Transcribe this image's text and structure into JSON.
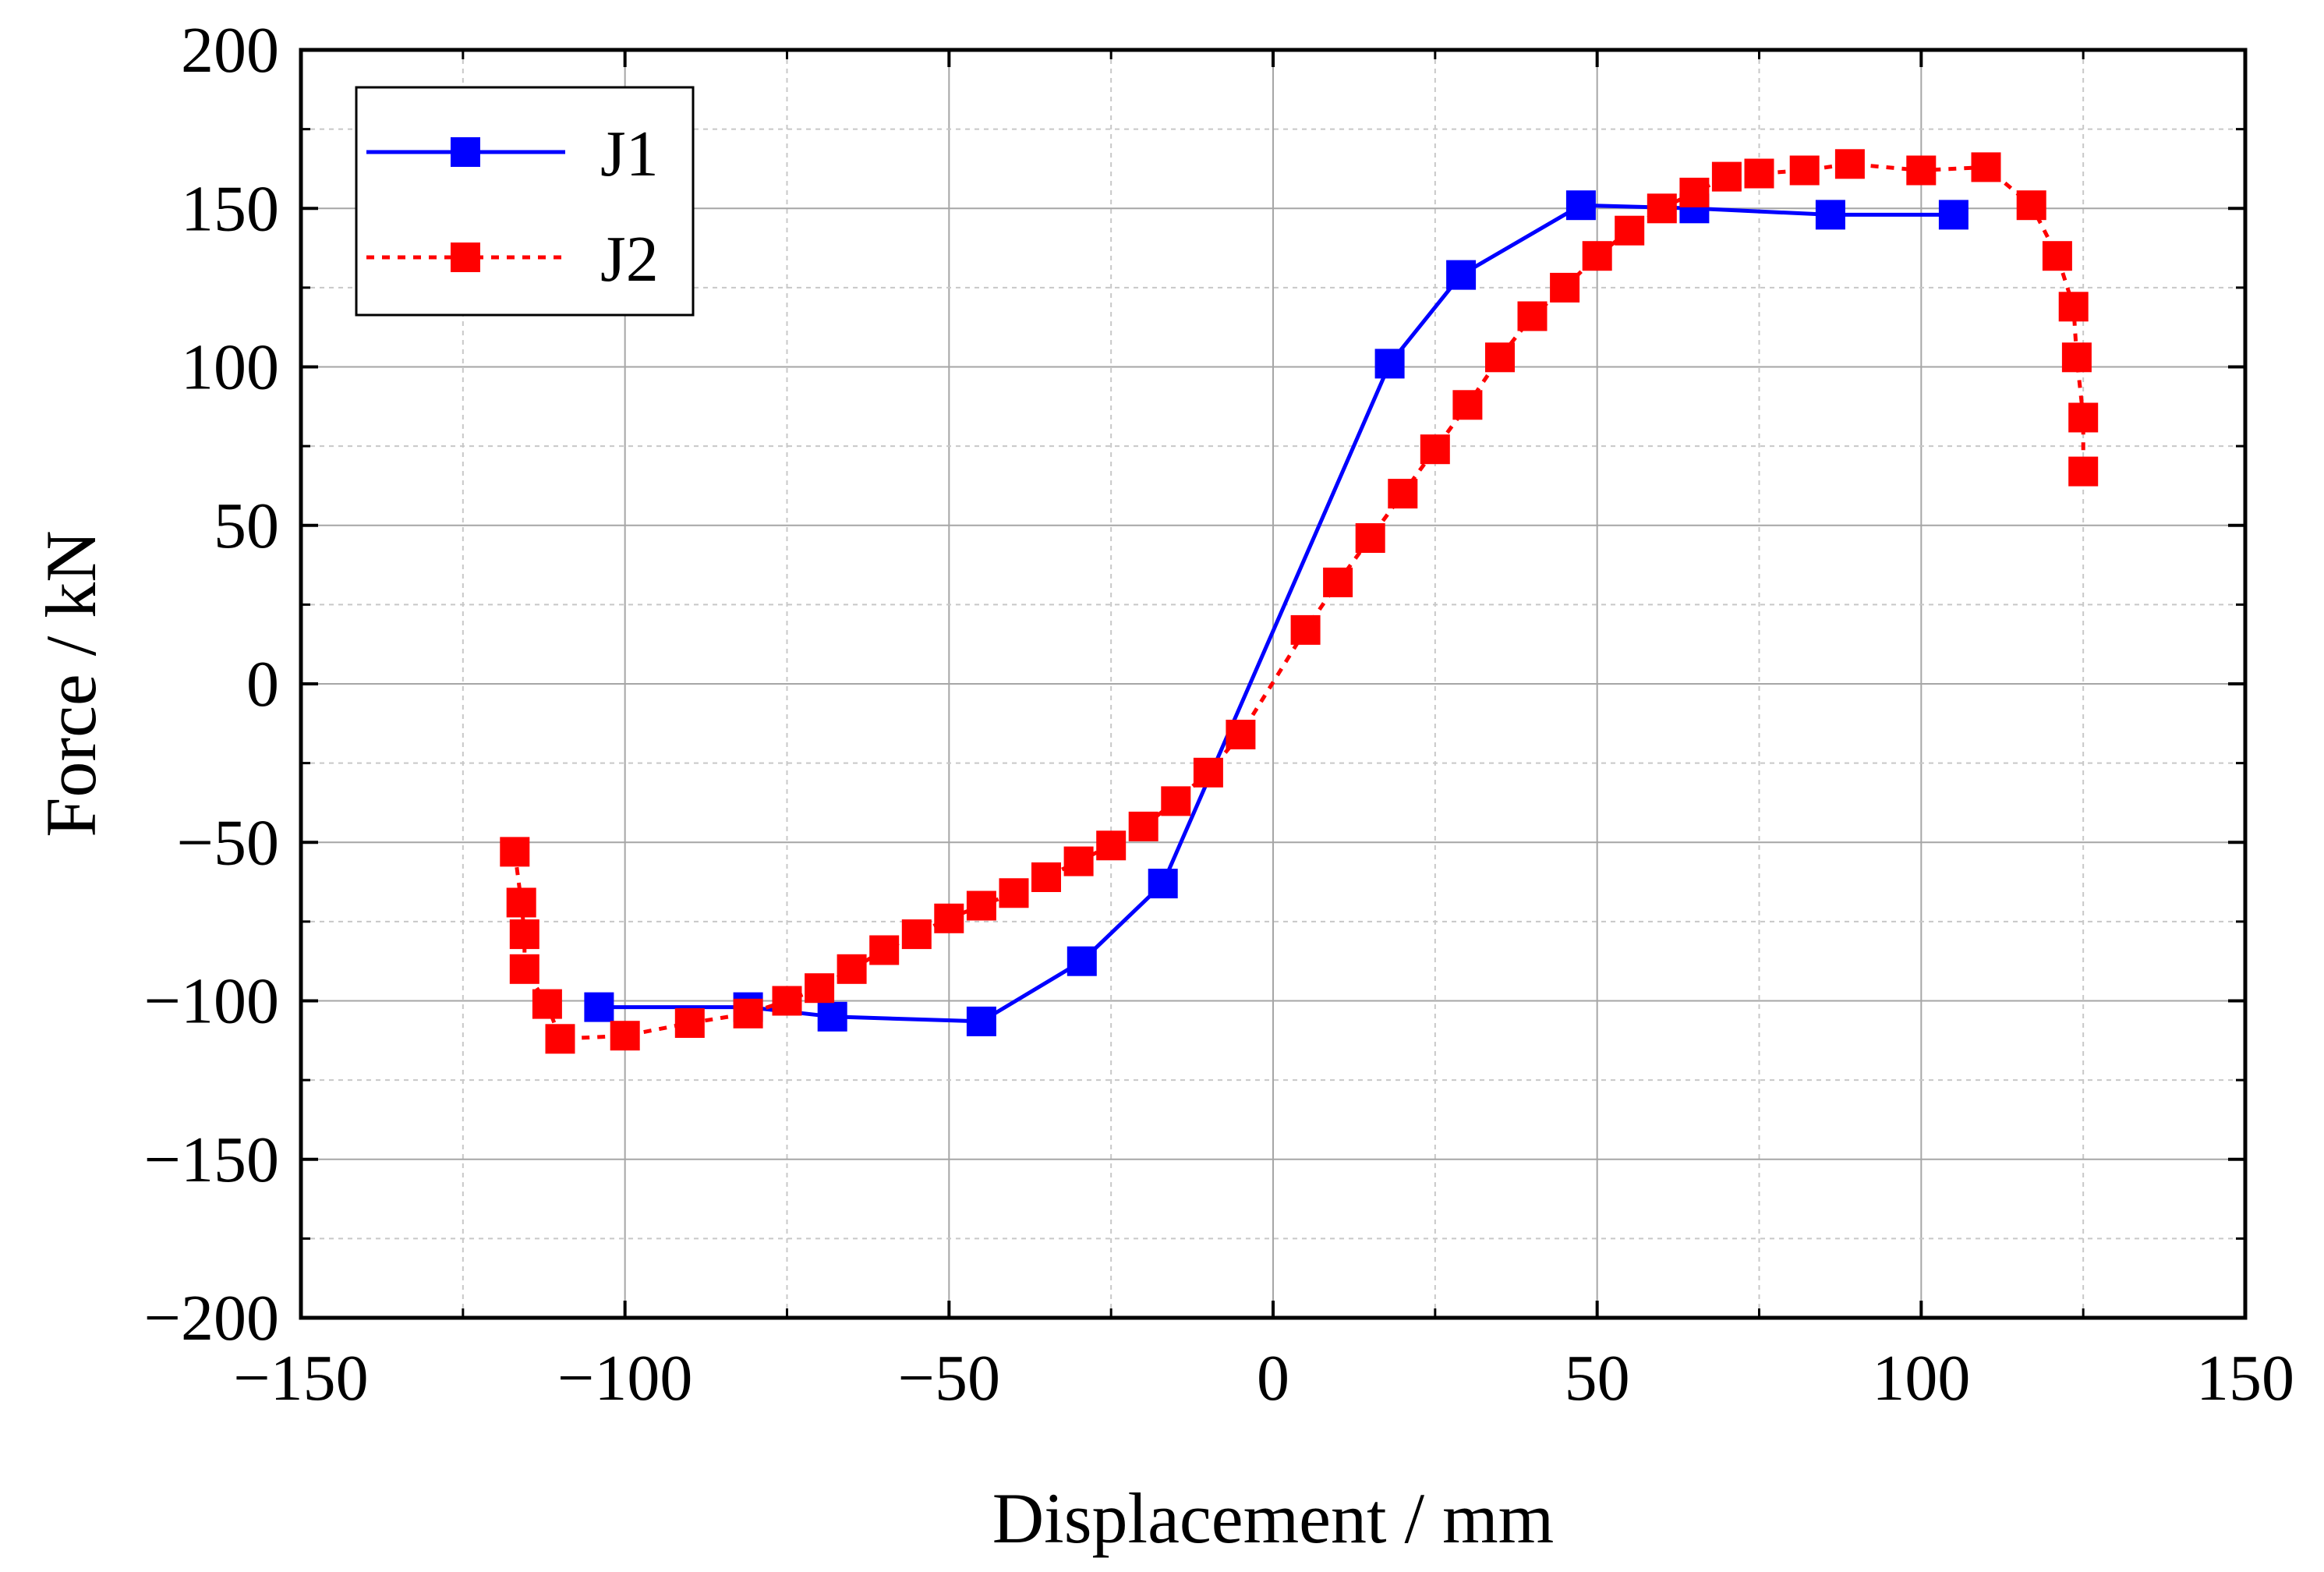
{
  "chart_data": {
    "type": "line",
    "title": "",
    "xlabel": "Displacement / mm",
    "ylabel": "Force / kN",
    "xlim": [
      -150,
      150
    ],
    "ylim": [
      -200,
      200
    ],
    "xticks": [
      -150,
      -100,
      -50,
      0,
      50,
      100,
      150
    ],
    "yticks": [
      -200,
      -150,
      -100,
      -50,
      0,
      50,
      100,
      150,
      200
    ],
    "xtick_labels": [
      "−150",
      "−100",
      "−50",
      "0",
      "50",
      "100",
      "150"
    ],
    "ytick_labels": [
      "−200",
      "−150",
      "−100",
      "−50",
      "0",
      "50",
      "100",
      "150",
      "200"
    ],
    "grid": true,
    "legend_position": "top-left",
    "series": [
      {
        "name": "J1",
        "color": "#0000ff",
        "line_style": "solid",
        "marker": "square",
        "x": [
          -104,
          -81,
          -68,
          -45,
          -29.5,
          -17,
          18,
          29,
          47.5,
          65,
          86,
          105
        ],
        "y": [
          -102,
          -102,
          -105,
          -106.5,
          -87.5,
          -63,
          101,
          129,
          151,
          150,
          148,
          148
        ]
      },
      {
        "name": "J2",
        "color": "#ff0000",
        "line_style": "dashed",
        "marker": "square",
        "x": [
          -117,
          -116,
          -115.5,
          -115.5,
          -112,
          -110,
          -100,
          -90,
          -81,
          -75,
          -70,
          -65,
          -60,
          -55,
          -50,
          -45,
          -40,
          -35,
          -30,
          -25,
          -20,
          -15,
          -10,
          -5,
          5,
          10,
          15,
          20,
          25,
          30,
          35,
          40,
          45,
          50,
          55,
          60,
          65,
          70,
          75,
          82,
          89,
          100,
          110,
          117,
          121,
          123.5,
          124,
          125,
          125
        ],
        "y": [
          -53,
          -69,
          -79,
          -90,
          -101,
          -112,
          -111,
          -107,
          -104,
          -100,
          -96,
          -90,
          -84,
          -79,
          -74,
          -70,
          -66,
          -61,
          -56,
          -51,
          -45,
          -37,
          -28,
          -16,
          17,
          32,
          46,
          60,
          74,
          88,
          103,
          116,
          125,
          135,
          143,
          150,
          155,
          160,
          161,
          162,
          164,
          162,
          163,
          151,
          135,
          119,
          103,
          84,
          67
        ]
      }
    ]
  }
}
